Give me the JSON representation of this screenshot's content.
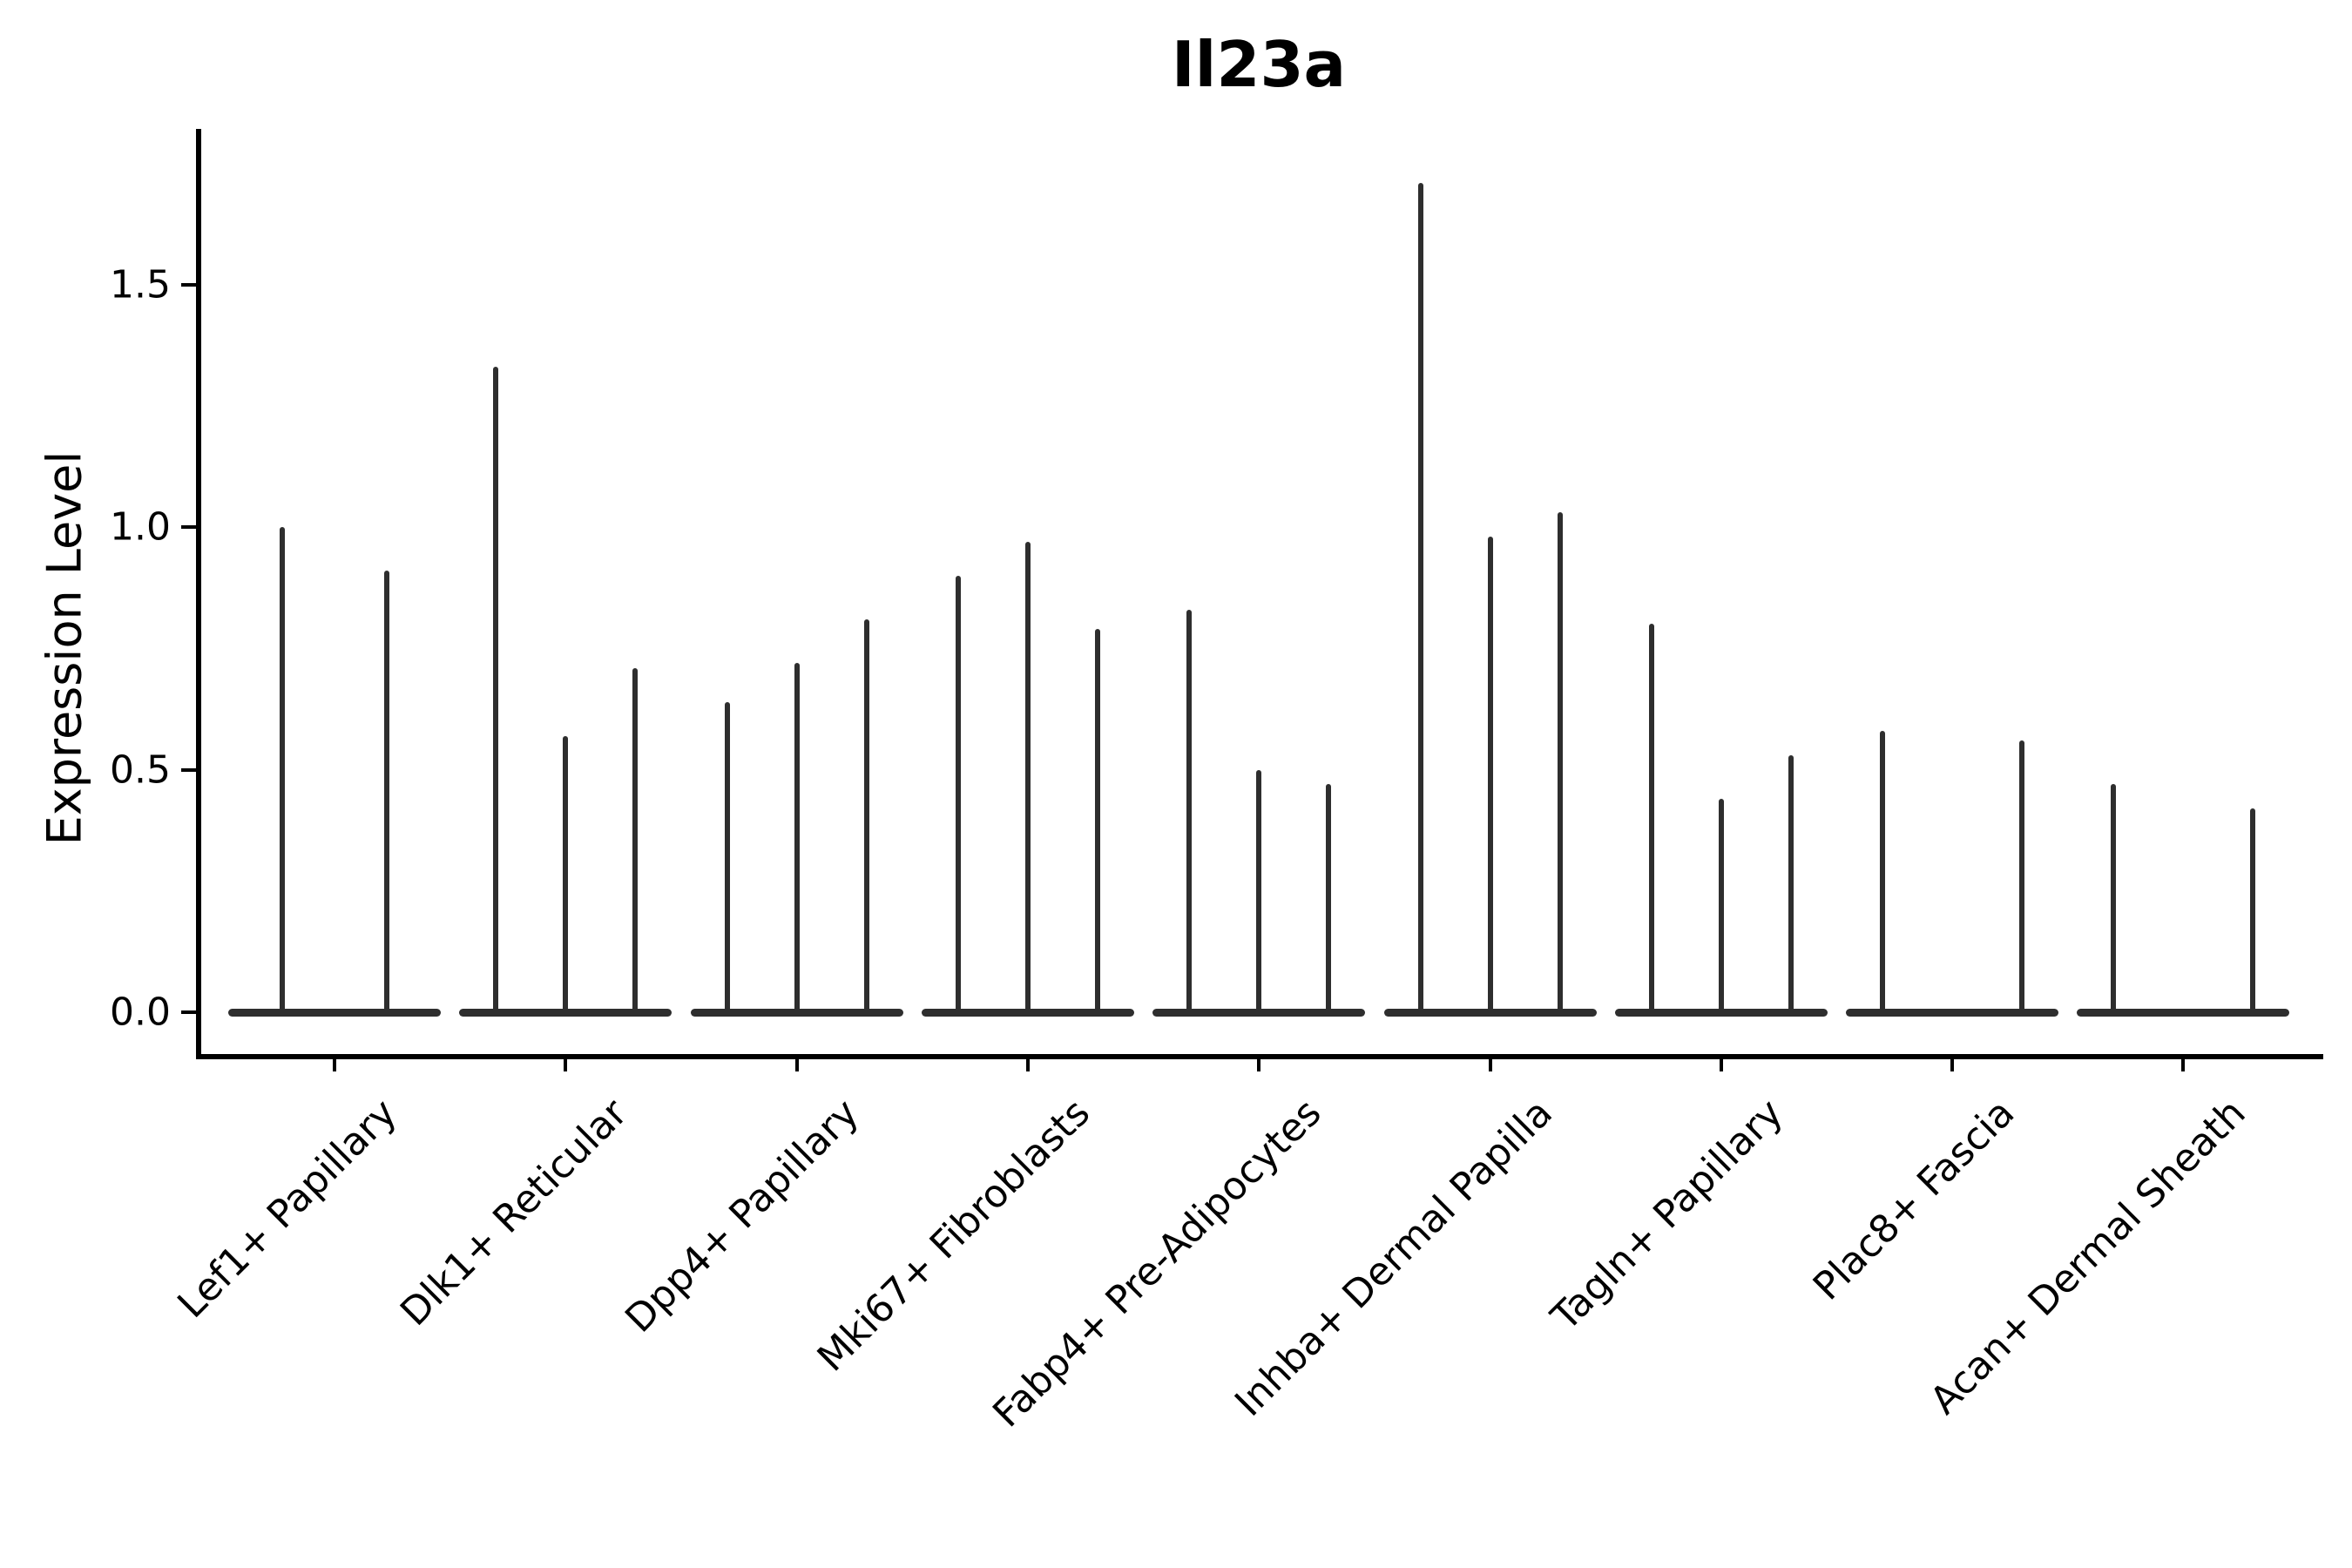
{
  "title": "Il23a",
  "y_axis": {
    "label": "Expression Level",
    "tick_labels": [
      "0.0",
      "0.5",
      "1.0",
      "1.5"
    ],
    "tick_values": [
      0.0,
      0.5,
      1.0,
      1.5
    ]
  },
  "colors": {
    "background": "#ffffff",
    "axis": "#000000",
    "text": "#000000",
    "violin": "#2e2e2e"
  },
  "chart_data": {
    "type": "violin",
    "title": "Il23a",
    "xlabel": "",
    "ylabel": "Expression Level",
    "ylim": [
      0,
      1.82
    ],
    "grid": false,
    "legend": "none",
    "description": "Single-cell expression violin plot; each category holds up to 3 thin spike-like violins (sub-violins); value 0 means a flat violin collapsed onto the baseline.",
    "categories": [
      "Lef1+ Papillary",
      "Dlk1+ Reticular",
      "Dpp4+ Papillary",
      "Mki67+ Fibroblasts",
      "Fabp4+ Pre-Adipocytes",
      "Inhba+ Dermal Papilla",
      "Tagln+ Papillary",
      "Plac8+ Fascia",
      "Acan+ Dermal Sheath"
    ],
    "groups": [
      {
        "category": "Lef1+ Papillary",
        "violin_maxima": [
          1.0,
          0.91
        ]
      },
      {
        "category": "Dlk1+ Reticular",
        "violin_maxima": [
          1.33,
          0.57,
          0.71
        ]
      },
      {
        "category": "Dpp4+ Papillary",
        "violin_maxima": [
          0.64,
          0.72,
          0.81
        ]
      },
      {
        "category": "Mki67+ Fibroblasts",
        "violin_maxima": [
          0.9,
          0.97,
          0.79
        ]
      },
      {
        "category": "Fabp4+ Pre-Adipocytes",
        "violin_maxima": [
          0.83,
          0.5,
          0.47
        ]
      },
      {
        "category": "Inhba+ Dermal Papilla",
        "violin_maxima": [
          1.71,
          0.98,
          1.03
        ]
      },
      {
        "category": "Tagln+ Papillary",
        "violin_maxima": [
          0.8,
          0.44,
          0.53
        ]
      },
      {
        "category": "Plac8+ Fascia",
        "violin_maxima": [
          0.58,
          0.0,
          0.56
        ]
      },
      {
        "category": "Acan+ Dermal Sheath",
        "violin_maxima": [
          0.47,
          0.0,
          0.42
        ]
      }
    ]
  }
}
